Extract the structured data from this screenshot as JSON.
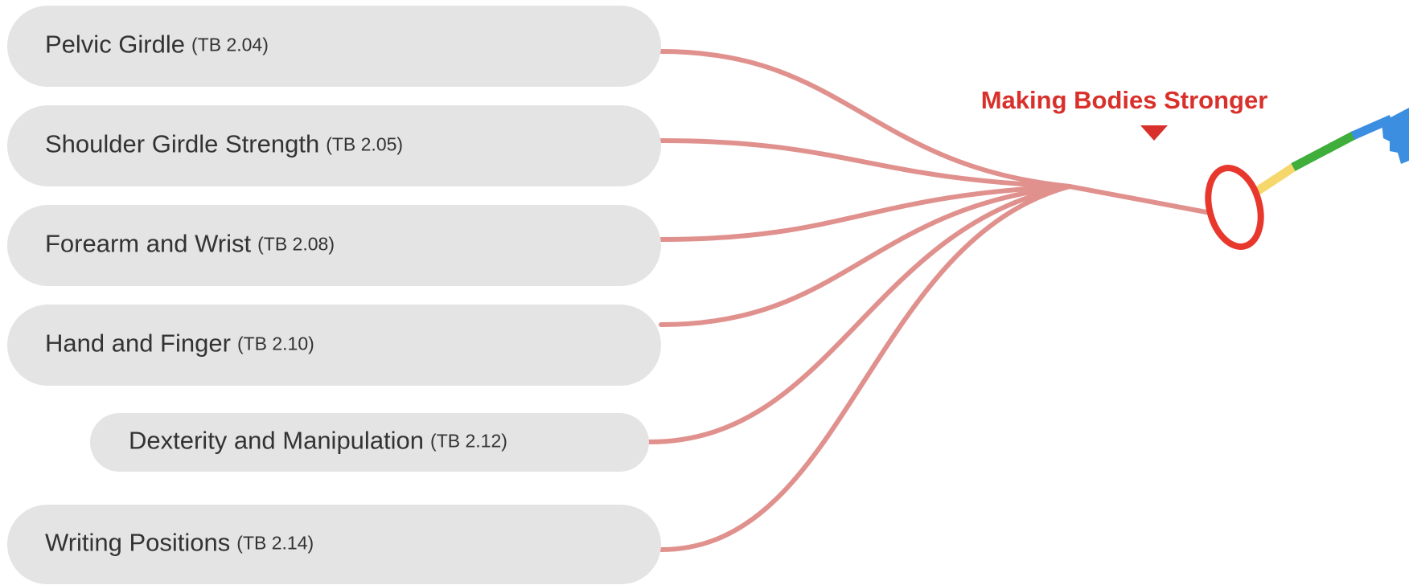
{
  "title": "Making Bodies Stronger",
  "nodes": [
    {
      "label": "Pelvic Girdle",
      "code": "(TB 2.04)"
    },
    {
      "label": "Shoulder Girdle Strength",
      "code": "(TB 2.05)"
    },
    {
      "label": "Forearm and Wrist",
      "code": "(TB 2.08)"
    },
    {
      "label": "Hand and Finger",
      "code": "(TB 2.10)"
    },
    {
      "label": "Dexterity and Manipulation",
      "code": "(TB 2.12)"
    },
    {
      "label": "Writing Positions",
      "code": "(TB 2.14)"
    }
  ]
}
